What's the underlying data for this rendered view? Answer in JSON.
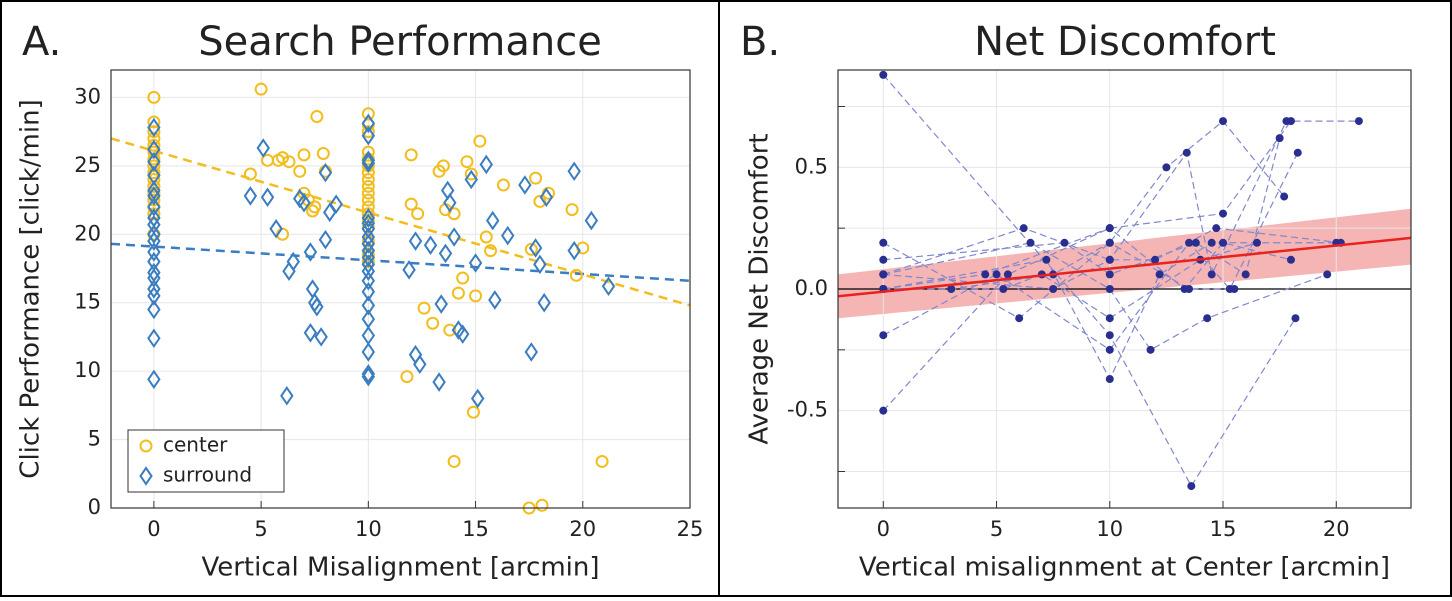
{
  "chart_data": [
    {
      "type": "scatter",
      "panel_label": "A.",
      "title": "Search Performance",
      "x_label": "Vertical Misalignment [arcmin]",
      "y_label": "Click Performance [click/min]",
      "xlim": [
        -2,
        25
      ],
      "ylim": [
        0,
        32
      ],
      "xticks": [
        0,
        5,
        10,
        15,
        20,
        25
      ],
      "yticks": [
        0,
        5,
        10,
        15,
        20,
        25,
        30
      ],
      "grid": true,
      "legend": "lower left",
      "series": [
        {
          "name": "center",
          "color": "#f2bd1d",
          "marker": "circle",
          "x": [
            0,
            0,
            0,
            0,
            0,
            0,
            0,
            0,
            0,
            0,
            0,
            0,
            0,
            0,
            0,
            0,
            5,
            4.5,
            5.3,
            5.8,
            6,
            6.3,
            6.8,
            7,
            7.2,
            7.4,
            7.6,
            7.9,
            7,
            7.5,
            8,
            6,
            10,
            10,
            10,
            10,
            10,
            10,
            10,
            10,
            10,
            10,
            10,
            10,
            10,
            10,
            10,
            10,
            10,
            10,
            11.8,
            12,
            12,
            12.3,
            12.6,
            13,
            13.3,
            13.5,
            13.6,
            13.8,
            14,
            14,
            14.2,
            14.4,
            14.6,
            14.8,
            14.9,
            15,
            15.2,
            15.5,
            15.7,
            16.3,
            17.5,
            17.6,
            17.8,
            18,
            18.1,
            18.4,
            19.5,
            19.7,
            20,
            20.9
          ],
          "values": [
            30,
            28.2,
            27.5,
            27,
            26.5,
            26,
            25.5,
            25,
            24.5,
            24,
            23.5,
            23,
            22.5,
            22,
            21.5,
            20,
            30.6,
            24.4,
            25.4,
            25.4,
            25.6,
            25.3,
            24.6,
            25.8,
            22.5,
            21.7,
            28.6,
            25.9,
            23,
            22,
            24.6,
            20,
            28.8,
            28,
            27.5,
            26,
            25.5,
            25,
            24.5,
            24,
            23.5,
            23,
            22.5,
            22,
            21.5,
            21,
            20.5,
            19.5,
            18.5,
            18,
            9.6,
            25.8,
            22.2,
            21.5,
            14.6,
            13.5,
            24.6,
            25,
            21.8,
            13,
            3.4,
            21.5,
            15.7,
            16.8,
            25.3,
            24.4,
            7,
            15.5,
            26.8,
            19.8,
            18.8,
            23.6,
            0,
            18.9,
            24.1,
            22.4,
            0.2,
            23,
            21.8,
            17,
            19,
            3.4
          ]
        },
        {
          "name": "surround",
          "color": "#3a7dc0",
          "marker": "diamond",
          "x": [
            0,
            0,
            0,
            0,
            0,
            0,
            0,
            0,
            0,
            0,
            0,
            0,
            0,
            0,
            0,
            0,
            0,
            0,
            0,
            0,
            4.5,
            5.1,
            5.3,
            5.7,
            6.2,
            6.3,
            6.5,
            6.8,
            7,
            7.3,
            7.3,
            7.4,
            7.5,
            7.6,
            7.8,
            8,
            8.2,
            8,
            8.5,
            10,
            10,
            10,
            10,
            10,
            10,
            10,
            10,
            10,
            10,
            10,
            10,
            10,
            10,
            10,
            10,
            10,
            10,
            10,
            10,
            10,
            11.9,
            12.2,
            12.2,
            12.4,
            12.9,
            13.3,
            13.4,
            13.6,
            13.7,
            13.8,
            14,
            14.2,
            14.4,
            14.8,
            15,
            15.1,
            15.5,
            15.8,
            15.9,
            16.5,
            17.3,
            17.6,
            17.8,
            18,
            18.2,
            18.3,
            19.6,
            19.6,
            20.4,
            21.2
          ],
          "values": [
            27.8,
            26.2,
            25.3,
            24.3,
            23.2,
            22.8,
            22,
            21.2,
            20.7,
            20,
            19.5,
            18.7,
            18,
            17.2,
            16.8,
            16,
            15.5,
            14.5,
            12.4,
            9.4,
            22.8,
            26.3,
            22.7,
            20.4,
            8.2,
            17.3,
            18,
            22.6,
            22.3,
            18.7,
            12.8,
            16,
            15,
            14.7,
            12.5,
            19.6,
            21.6,
            24.5,
            22.2,
            28.1,
            27.2,
            25.4,
            25.2,
            21.2,
            20.8,
            20.4,
            19.8,
            19.3,
            18.8,
            18.3,
            17.8,
            17.3,
            16.6,
            15.8,
            14.8,
            13.8,
            12.6,
            11.4,
            9.8,
            9.6,
            17.4,
            19.5,
            11.2,
            10.5,
            19.2,
            9.2,
            14.9,
            18.6,
            23.2,
            22.3,
            19.8,
            13,
            12.7,
            24,
            17.9,
            8,
            25.1,
            21,
            15.2,
            19.9,
            23.6,
            11.4,
            19,
            17.8,
            15,
            22.7,
            24.6,
            18.8,
            21,
            16.2
          ]
        }
      ],
      "fits": [
        {
          "color": "#f2bd1d",
          "x": [
            -2,
            25
          ],
          "values": [
            27,
            14.8
          ]
        },
        {
          "color": "#3a7dc0",
          "x": [
            -2,
            25
          ],
          "values": [
            19.3,
            16.6
          ]
        }
      ]
    },
    {
      "type": "subject-lines",
      "panel_label": "B.",
      "title": "Net Discomfort",
      "x_label": "Vertical misalignment at Center [arcmin]",
      "y_label": "Average Net Discomfort",
      "xlim": [
        -2,
        23.3
      ],
      "ylim": [
        -0.9,
        0.9
      ],
      "xticks": [
        0,
        5,
        10,
        15,
        20
      ],
      "yticks": [
        -0.5,
        {
          "value": 0,
          "label": "0.0"
        },
        0.5
      ],
      "minor_yticks": [
        -0.75,
        -0.25,
        0.25,
        0.75
      ],
      "grid": true,
      "zero_line": true,
      "point_color": "#2a2f8f",
      "line_color": "#8088cc",
      "subjects": [
        {
          "x": [
            0,
            10,
            13.6,
            18.2
          ],
          "values": [
            0.88,
            -0.19,
            -0.81,
            -0.12
          ]
        },
        {
          "x": [
            0,
            5.5,
            10,
            15,
            18,
            21
          ],
          "values": [
            -0.5,
            0.06,
            0.25,
            0.31,
            0.69,
            0.69
          ]
        },
        {
          "x": [
            0,
            7.5,
            10,
            13.4,
            14.5,
            17.8
          ],
          "values": [
            0.06,
            0,
            0.12,
            0.56,
            0.06,
            0.69
          ]
        },
        {
          "x": [
            0,
            6,
            10,
            12.5,
            15,
            17.7
          ],
          "values": [
            0.19,
            -0.12,
            0.19,
            0.5,
            0.69,
            0.38
          ]
        },
        {
          "x": [
            0,
            5,
            10,
            13.5,
            15.3,
            18.3
          ],
          "values": [
            -0.19,
            0.06,
            -0.25,
            0.19,
            0,
            0.56
          ]
        },
        {
          "x": [
            0,
            7.2,
            10,
            12.2,
            14.5,
            20
          ],
          "values": [
            0,
            0.12,
            -0.37,
            0.06,
            0.19,
            0.19
          ]
        },
        {
          "x": [
            0,
            6.5,
            10,
            11.8,
            14.3,
            19.6
          ],
          "values": [
            0.06,
            0.19,
            0,
            -0.25,
            -0.12,
            0.06
          ]
        },
        {
          "x": [
            0,
            8,
            10,
            13.8,
            16,
            17.5
          ],
          "values": [
            0.12,
            0.19,
            0.06,
            0.19,
            0.06,
            0.62
          ]
        },
        {
          "x": [
            0,
            4.5,
            10,
            13.3,
            15,
            18
          ],
          "values": [
            0,
            0.06,
            0.25,
            0,
            0.19,
            0.12
          ]
        },
        {
          "x": [
            0,
            6.2,
            10,
            12,
            14.7,
            20.2
          ],
          "values": [
            0.06,
            0.25,
            0.12,
            0.12,
            0.25,
            0.19
          ]
        },
        {
          "x": [
            0,
            5.3,
            7,
            10,
            14,
            16.5
          ],
          "values": [
            0,
            0,
            0.06,
            -0.12,
            0.12,
            0.19
          ]
        },
        {
          "x": [
            0,
            3,
            7.5,
            10,
            13.5,
            15.5
          ],
          "values": [
            0,
            0,
            0.06,
            0.19,
            0,
            0
          ]
        }
      ],
      "fit": {
        "color": "#e8231f",
        "x": [
          -2,
          23.3
        ],
        "values": [
          -0.03,
          0.21
        ]
      },
      "band": {
        "color": "#f5b5b5",
        "x": [
          -2,
          23.3
        ],
        "lower": [
          -0.12,
          0.1
        ],
        "upper": [
          0.06,
          0.33
        ]
      }
    }
  ]
}
